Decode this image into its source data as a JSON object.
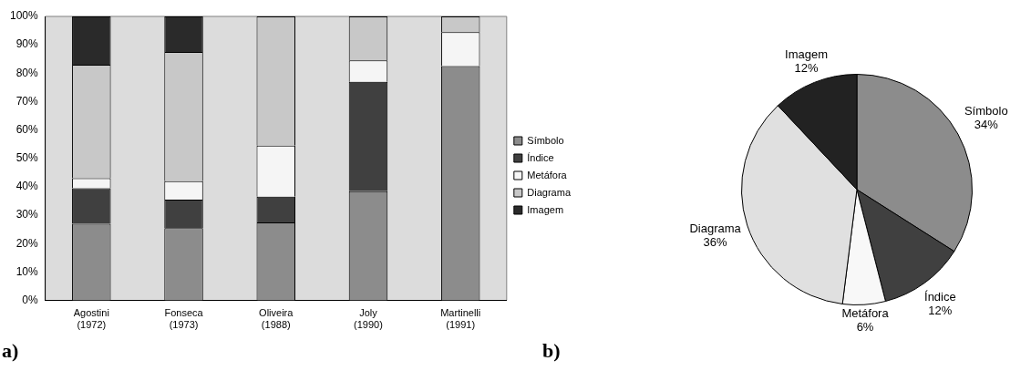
{
  "chart_data": [
    {
      "type": "bar",
      "stacked": true,
      "categories": [
        "Agostini (1972)",
        "Fonseca (1973)",
        "Oliveira (1988)",
        "Joly (1990)",
        "Martinelli (1991)"
      ],
      "series": [
        {
          "name": "Símbolo",
          "color": "#8c8c8c",
          "values": [
            27,
            25.5,
            27.5,
            38.5,
            82.5
          ]
        },
        {
          "name": "Índice",
          "color": "#404040",
          "values": [
            12.5,
            10,
            9,
            38.5,
            0
          ]
        },
        {
          "name": "Metáfora",
          "color": "#f5f5f5",
          "values": [
            3.5,
            6.5,
            18,
            7.5,
            12
          ]
        },
        {
          "name": "Diagrama",
          "color": "#c8c8c8",
          "values": [
            40,
            45.5,
            45.5,
            15.5,
            5.5
          ]
        },
        {
          "name": "Imagem",
          "color": "#2a2a2a",
          "values": [
            17,
            12.5,
            0,
            0,
            0
          ]
        }
      ],
      "ylim": [
        0,
        100
      ],
      "yticks": [
        {
          "value": 0,
          "label": "0%"
        },
        {
          "value": 10,
          "label": "10%"
        },
        {
          "value": 20,
          "label": "20%"
        },
        {
          "value": 30,
          "label": "30%"
        },
        {
          "value": 40,
          "label": "40%"
        },
        {
          "value": 50,
          "label": "50%"
        },
        {
          "value": 60,
          "label": "60%"
        },
        {
          "value": 70,
          "label": "70%"
        },
        {
          "value": 80,
          "label": "80%"
        },
        {
          "value": 90,
          "label": "90%"
        },
        {
          "value": 100,
          "label": "100%"
        }
      ],
      "grid": false,
      "legend": "right",
      "annotations": [
        "a)"
      ]
    },
    {
      "type": "pie",
      "categories": [
        "Símbolo",
        "Índice",
        "Metáfora",
        "Diagrama",
        "Imagem"
      ],
      "values": [
        34,
        12,
        6,
        36,
        12
      ],
      "colors": [
        "#8c8c8c",
        "#404040",
        "#f8f8f8",
        "#e0e0e0",
        "#222222"
      ],
      "value_labels": [
        "34%",
        "12%",
        "6%",
        "36%",
        "12%"
      ],
      "legend": false,
      "annotations": [
        "b)"
      ]
    }
  ]
}
